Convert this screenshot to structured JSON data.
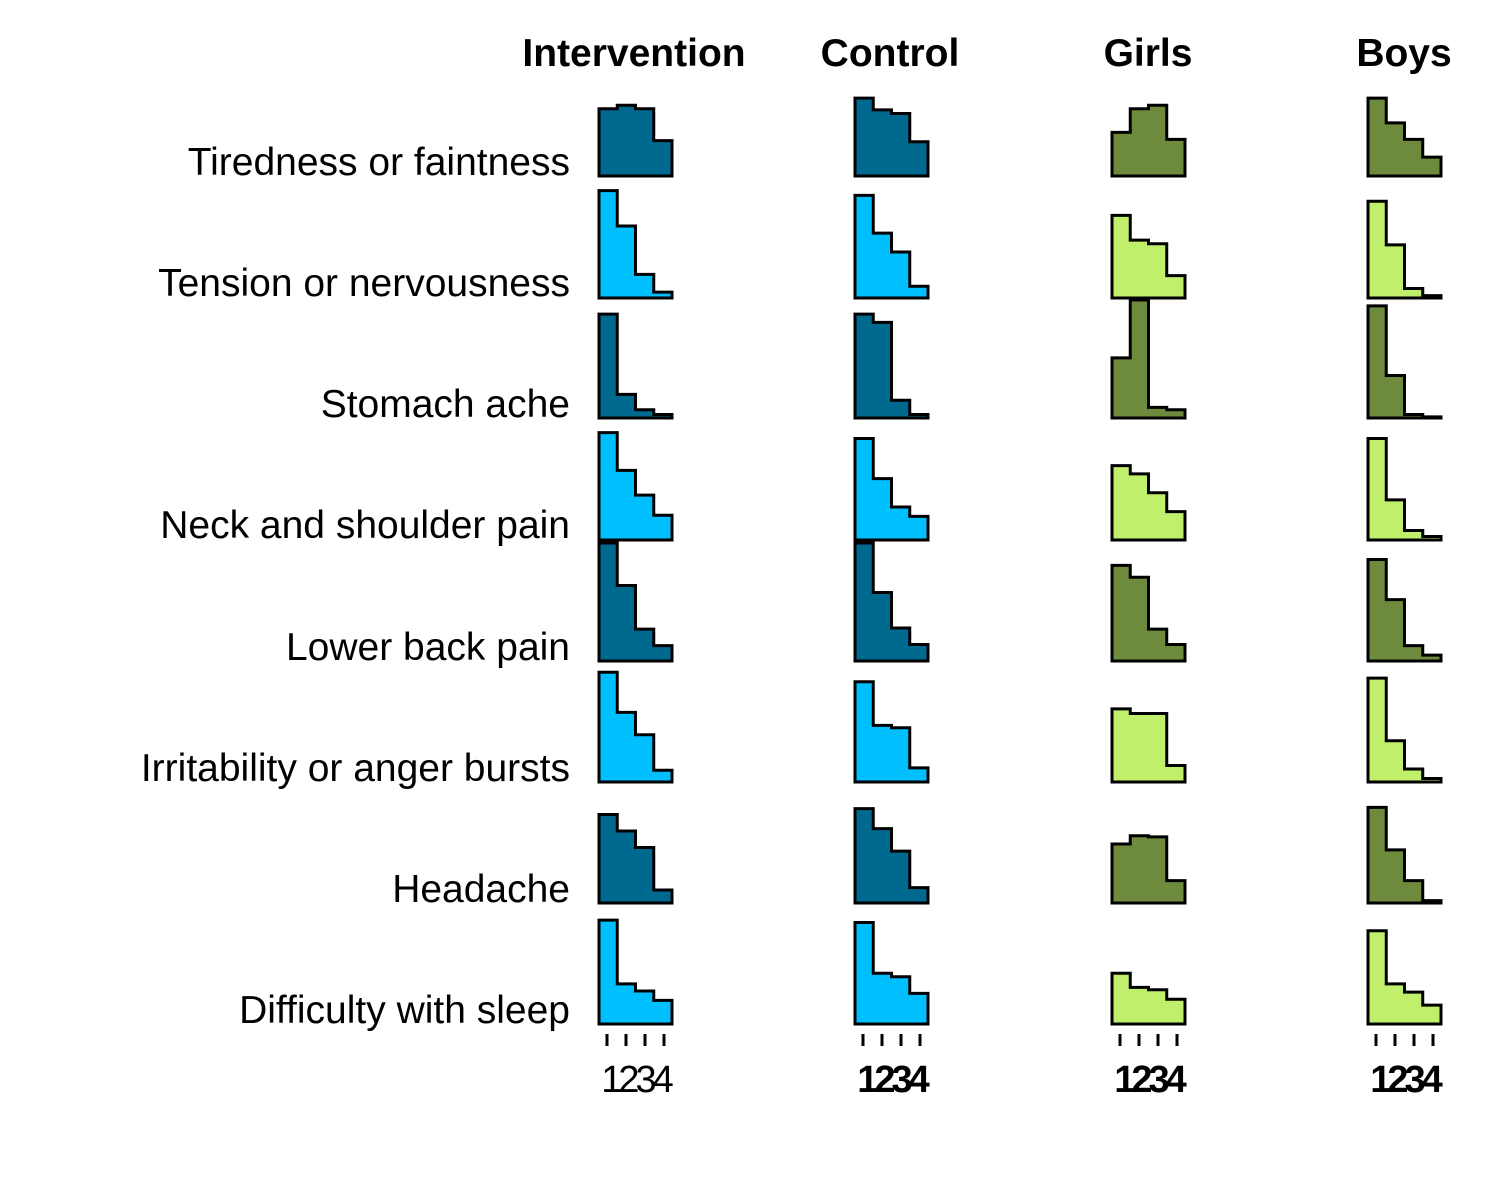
{
  "chart_data": {
    "type": "bar",
    "layout": "small-multiple step histograms, rows = symptoms, columns = groups",
    "legend": "none",
    "grid": false,
    "ylim": [
      0,
      1
    ],
    "row_labels": [
      "Tiredness or faintness",
      "Tension or nervousness",
      "Stomach ache",
      "Neck and shoulder pain",
      "Lower back pain",
      "Irritability or anger bursts",
      "Headache",
      "Difficulty with sleep"
    ],
    "categories": [
      "1",
      "2",
      "3",
      "4"
    ],
    "tick_labels": {
      "intervention": "1234",
      "control": "1234",
      "girls": "1234",
      "boys": "1234"
    },
    "colors": {
      "intervention_dark": "#00698f",
      "intervention_light": "#00bfff",
      "sex_dark": "#6e8b3d",
      "sex_light": "#bfef6b",
      "outline": "#000000"
    },
    "columns": [
      {
        "title": "Intervention",
        "tick_bold": false,
        "series": [
          {
            "values": [
              0.57,
              0.6,
              0.57,
              0.3
            ]
          },
          {
            "values": [
              0.91,
              0.61,
              0.2,
              0.05
            ]
          },
          {
            "values": [
              0.88,
              0.2,
              0.07,
              0.03
            ]
          },
          {
            "values": [
              0.91,
              0.59,
              0.38,
              0.21
            ]
          },
          {
            "values": [
              1.0,
              0.64,
              0.27,
              0.13
            ]
          },
          {
            "values": [
              0.93,
              0.59,
              0.4,
              0.1
            ]
          },
          {
            "values": [
              0.75,
              0.61,
              0.47,
              0.11
            ]
          },
          {
            "values": [
              0.88,
              0.34,
              0.28,
              0.2
            ]
          }
        ]
      },
      {
        "title": "Control",
        "tick_bold": true,
        "series": [
          {
            "values": [
              0.66,
              0.56,
              0.53,
              0.29
            ]
          },
          {
            "values": [
              0.87,
              0.55,
              0.39,
              0.1
            ]
          },
          {
            "values": [
              0.88,
              0.81,
              0.15,
              0.03
            ]
          },
          {
            "values": [
              0.86,
              0.52,
              0.28,
              0.2
            ]
          },
          {
            "values": [
              1.0,
              0.58,
              0.28,
              0.14
            ]
          },
          {
            "values": [
              0.85,
              0.48,
              0.46,
              0.12
            ]
          },
          {
            "values": [
              0.8,
              0.63,
              0.44,
              0.13
            ]
          },
          {
            "values": [
              0.86,
              0.43,
              0.4,
              0.26
            ]
          }
        ]
      },
      {
        "title": "Girls",
        "tick_bold": true,
        "series": [
          {
            "values": [
              0.37,
              0.57,
              0.6,
              0.31
            ]
          },
          {
            "values": [
              0.7,
              0.49,
              0.46,
              0.19
            ]
          },
          {
            "values": [
              0.51,
              1.0,
              0.09,
              0.07
            ]
          },
          {
            "values": [
              0.63,
              0.56,
              0.4,
              0.24
            ]
          },
          {
            "values": [
              0.81,
              0.71,
              0.27,
              0.14
            ]
          },
          {
            "values": [
              0.62,
              0.58,
              0.58,
              0.14
            ]
          },
          {
            "values": [
              0.5,
              0.57,
              0.56,
              0.19
            ]
          },
          {
            "values": [
              0.43,
              0.31,
              0.29,
              0.21
            ]
          }
        ]
      },
      {
        "title": "Boys",
        "tick_bold": true,
        "series": [
          {
            "values": [
              0.66,
              0.45,
              0.31,
              0.16
            ]
          },
          {
            "values": [
              0.82,
              0.45,
              0.08,
              0.02
            ]
          },
          {
            "values": [
              0.95,
              0.36,
              0.03,
              0.01
            ]
          },
          {
            "values": [
              0.86,
              0.34,
              0.08,
              0.03
            ]
          },
          {
            "values": [
              0.86,
              0.52,
              0.13,
              0.05
            ]
          },
          {
            "values": [
              0.88,
              0.35,
              0.11,
              0.03
            ]
          },
          {
            "values": [
              0.81,
              0.45,
              0.19,
              0.02
            ]
          },
          {
            "values": [
              0.79,
              0.34,
              0.27,
              0.16
            ]
          }
        ]
      }
    ]
  }
}
